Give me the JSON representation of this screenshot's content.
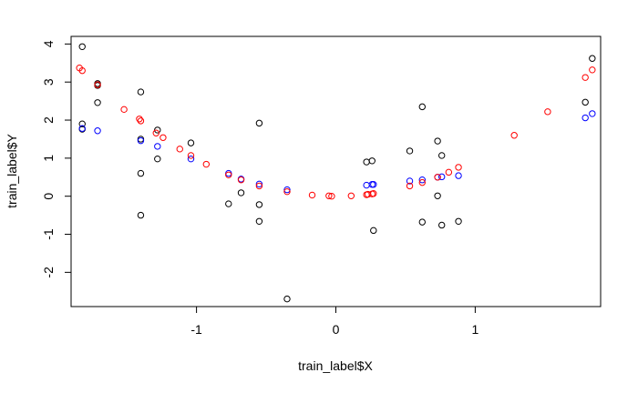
{
  "chart_data": {
    "type": "scatter",
    "xlabel": "train_label$X",
    "ylabel": "train_label$Y",
    "xlim": [
      -1.9,
      1.9
    ],
    "ylim": [
      -2.9,
      4.2
    ],
    "xticks": [
      -1,
      0,
      1
    ],
    "yticks": [
      -2,
      -1,
      0,
      1,
      2,
      3,
      4
    ],
    "xtick_labels": [
      "-1",
      "0",
      "1"
    ],
    "ytick_labels": [
      "-2",
      "-1",
      "0",
      "1",
      "2",
      "3",
      "4"
    ],
    "grid": false,
    "series": [
      {
        "color": "#000000",
        "points": [
          [
            -1.82,
            3.93
          ],
          [
            -1.82,
            1.9
          ],
          [
            -1.82,
            1.76
          ],
          [
            -1.71,
            2.96
          ],
          [
            -1.71,
            2.91
          ],
          [
            -1.71,
            2.46
          ],
          [
            -1.4,
            2.74
          ],
          [
            -1.4,
            1.5
          ],
          [
            -1.4,
            0.6
          ],
          [
            -1.4,
            -0.5
          ],
          [
            -1.28,
            1.74
          ],
          [
            -1.28,
            0.98
          ],
          [
            -1.04,
            1.4
          ],
          [
            -0.77,
            -0.2
          ],
          [
            -0.68,
            0.09
          ],
          [
            -0.55,
            1.92
          ],
          [
            -0.55,
            -0.22
          ],
          [
            -0.55,
            -0.66
          ],
          [
            -0.35,
            -2.7
          ],
          [
            0.22,
            0.9
          ],
          [
            0.26,
            0.93
          ],
          [
            0.27,
            -0.9
          ],
          [
            0.53,
            1.19
          ],
          [
            0.62,
            2.35
          ],
          [
            0.62,
            -0.68
          ],
          [
            0.73,
            1.45
          ],
          [
            0.73,
            0.01
          ],
          [
            0.76,
            1.07
          ],
          [
            0.76,
            -0.76
          ],
          [
            0.88,
            -0.66
          ],
          [
            1.79,
            2.47
          ],
          [
            1.84,
            3.62
          ]
        ]
      },
      {
        "color": "#0000ff",
        "points": [
          [
            -1.82,
            1.78
          ],
          [
            -1.71,
            1.72
          ],
          [
            -1.4,
            1.46
          ],
          [
            -1.28,
            1.31
          ],
          [
            -1.04,
            0.98
          ],
          [
            -0.77,
            0.6
          ],
          [
            -0.68,
            0.45
          ],
          [
            -0.55,
            0.32
          ],
          [
            -0.35,
            0.17
          ],
          [
            0.22,
            0.29
          ],
          [
            0.26,
            0.31
          ],
          [
            0.27,
            0.31
          ],
          [
            0.53,
            0.4
          ],
          [
            0.62,
            0.43
          ],
          [
            0.73,
            0.5
          ],
          [
            0.76,
            0.51
          ],
          [
            0.88,
            0.54
          ],
          [
            1.79,
            2.06
          ],
          [
            1.84,
            2.17
          ]
        ]
      },
      {
        "color": "#ff0000",
        "points": [
          [
            -1.84,
            3.37
          ],
          [
            -1.82,
            3.3
          ],
          [
            -1.71,
            2.93
          ],
          [
            -1.52,
            2.28
          ],
          [
            -1.41,
            2.03
          ],
          [
            -1.4,
            1.98
          ],
          [
            -1.29,
            1.66
          ],
          [
            -1.24,
            1.54
          ],
          [
            -1.12,
            1.24
          ],
          [
            -1.04,
            1.07
          ],
          [
            -0.93,
            0.84
          ],
          [
            -0.77,
            0.56
          ],
          [
            -0.68,
            0.43
          ],
          [
            -0.55,
            0.27
          ],
          [
            -0.35,
            0.12
          ],
          [
            -0.17,
            0.03
          ],
          [
            -0.05,
            0.01
          ],
          [
            -0.03,
            0.0
          ],
          [
            0.11,
            0.01
          ],
          [
            0.22,
            0.04
          ],
          [
            0.23,
            0.05
          ],
          [
            0.26,
            0.06
          ],
          [
            0.27,
            0.07
          ],
          [
            0.53,
            0.27
          ],
          [
            0.62,
            0.36
          ],
          [
            0.73,
            0.5
          ],
          [
            0.81,
            0.63
          ],
          [
            0.88,
            0.76
          ],
          [
            1.28,
            1.6
          ],
          [
            1.52,
            2.22
          ],
          [
            1.79,
            3.12
          ],
          [
            1.84,
            3.32
          ]
        ]
      }
    ]
  }
}
